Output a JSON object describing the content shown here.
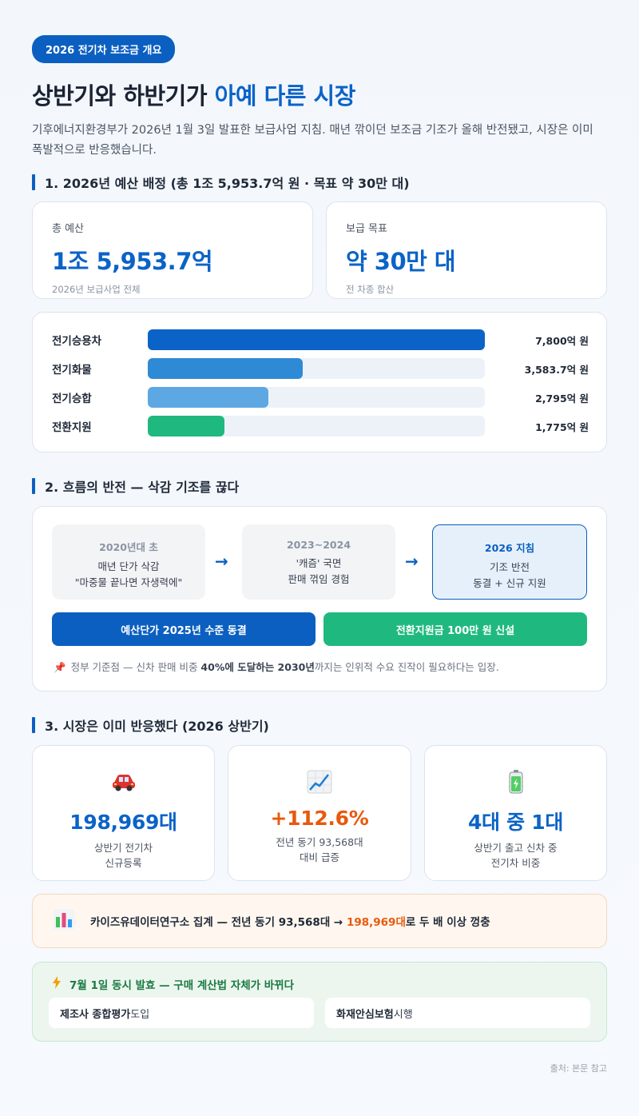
{
  "header": {
    "pill": "2026 전기차 보조금 개요",
    "title_main": "상반기와 하반기가 ",
    "title_accent": "아예 다른 시장",
    "lead": "기후에너지환경부가 2026년 1월 3일 발표한 보급사업 지침. 매년 깎이던 보조금 기조가 올해 반전됐고, 시장은 이미 폭발적으로 반응했습니다."
  },
  "section1": {
    "title": "1. 2026년 예산 배정 (총 1조 5,953.7억 원 · 목표 약 30만 대)",
    "stats": [
      {
        "label": "총 예산",
        "value": "1조 5,953.7억",
        "sub": "2026년 보급사업 전체"
      },
      {
        "label": "보급 목표",
        "value": "약 30만 대",
        "sub": "전 차종 합산"
      }
    ],
    "budget_rows": [
      {
        "label": "전기승용차",
        "amount": 7800,
        "value_text": "7,800억 원",
        "color": "#0b63c7"
      },
      {
        "label": "전기화물",
        "amount": 3583.7,
        "value_text": "3,583.7억 원",
        "color": "#2f8ad6"
      },
      {
        "label": "전기승합",
        "amount": 2795,
        "value_text": "2,795억 원",
        "color": "#5da8e3"
      },
      {
        "label": "전환지원",
        "amount": 1775,
        "value_text": "1,775억 원",
        "color": "#1fb980"
      }
    ],
    "budget_max": 7800
  },
  "section2": {
    "title": "2. 흐름의 반전 — 삭감 기조를 끊다",
    "steps": [
      {
        "title": "2020년대 초",
        "line1": "매년 단가 삭감",
        "line2": "\"마중물 끝나면 자생력에\""
      },
      {
        "title": "2023~2024",
        "line1": "'캐즘' 국면",
        "line2": "판매 꺾임 경험"
      },
      {
        "title": "2026 지침",
        "line1": "기조 반전",
        "line2": "동결 + 신규 지원"
      }
    ],
    "arrow": "→",
    "buttons": [
      {
        "label": "예산단가 2025년 수준 동결",
        "color": "#0b5fc1"
      },
      {
        "label": "전환지원금 100만 원 신설",
        "color": "#1fb980"
      }
    ],
    "note": {
      "pin": "📌",
      "pre": "정부 기준점 — 신차 판매 비중 ",
      "b1": "40%에 도달하는 2030년",
      "post": "까지는 인위적 수요 진작이 필요하다는 입장."
    }
  },
  "section3": {
    "title": "3. 시장은 이미 반응했다 (2026 상반기)",
    "metrics": [
      {
        "icon": "car-icon",
        "value": "198,969대",
        "color": "#0b63c7",
        "sub1": "상반기 전기차",
        "sub2": "신규등록"
      },
      {
        "icon": "trend-chart-icon",
        "value": "+112.6%",
        "color": "#e8590c",
        "sub1": "전년 동기 93,568대",
        "sub2": "대비 급증"
      },
      {
        "icon": "battery-icon",
        "value": "4대 중 1대",
        "color": "#0b63c7",
        "sub1": "상반기 출고 신차 중",
        "sub2": "전기차 비중"
      }
    ]
  },
  "callout": {
    "icon": "bar-chart-icon",
    "pre": "카이즈유데이터연구소 집계 — 전년 동기 93,568대 → ",
    "hot": "198,969대",
    "post": "로 두 배 이상 껑충"
  },
  "july": {
    "icon": "lightning-icon",
    "title": "7월 1일 동시 발효 — 구매 계산법 자체가 바뀌다",
    "items": [
      {
        "bold": "제조사 종합평가",
        "rest": " 도입"
      },
      {
        "bold": "화재안심보험",
        "rest": " 시행"
      }
    ]
  },
  "footer": {
    "source": "출처: 본문 참고"
  }
}
